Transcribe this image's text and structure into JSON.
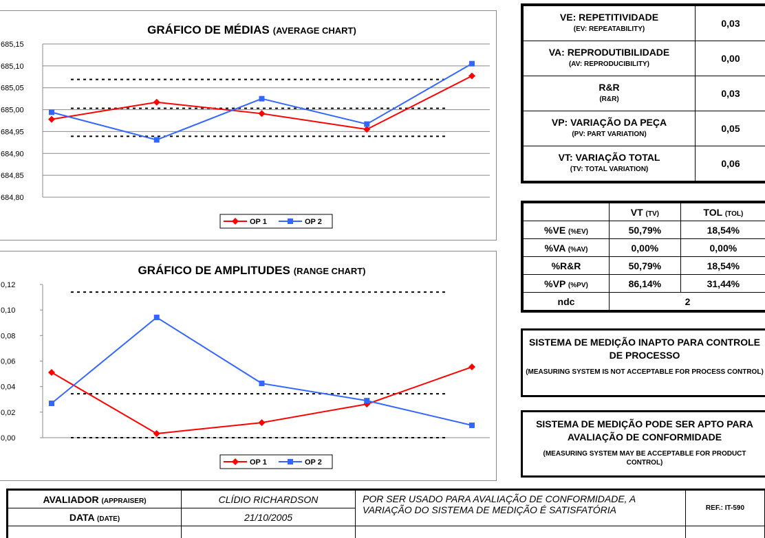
{
  "chart_data": [
    {
      "type": "line",
      "title": "GRÁFICO DE MÉDIAS",
      "subtitle": "(AVERAGE CHART)",
      "categories": [
        null,
        null,
        null,
        null,
        null
      ],
      "series": [
        {
          "name": "OP 1",
          "color": "#ff0000",
          "marker": "diamond",
          "values": [
            684.978,
            685.017,
            684.991,
            684.955,
            685.077
          ]
        },
        {
          "name": "OP 2",
          "color": "#3366ff",
          "marker": "square",
          "values": [
            684.994,
            684.931,
            685.025,
            684.967,
            685.105
          ]
        }
      ],
      "reference_lines": [
        685.069,
        685.003,
        684.939
      ],
      "ylim": [
        684.8,
        685.15
      ],
      "yticks": [
        {
          "value": 684.8,
          "label": "684,80"
        },
        {
          "value": 684.85,
          "label": "684,85"
        },
        {
          "value": 684.9,
          "label": "684,90"
        },
        {
          "value": 684.95,
          "label": "684,95"
        },
        {
          "value": 685,
          "label": "685,00"
        },
        {
          "value": 685.05,
          "label": "685,05"
        },
        {
          "value": 685.1,
          "label": "685,10"
        },
        {
          "value": 685.15,
          "label": "685,15"
        }
      ],
      "grid": true,
      "legend": "bottom"
    },
    {
      "type": "line",
      "title": "GRÁFICO DE AMPLITUDES",
      "subtitle": "(RANGE CHART)",
      "categories": [
        null,
        null,
        null,
        null,
        null
      ],
      "series": [
        {
          "name": "OP 1",
          "color": "#ff0000",
          "marker": "diamond",
          "values": [
            0.0511,
            0.0032,
            0.0118,
            0.0263,
            0.0554
          ]
        },
        {
          "name": "OP 2",
          "color": "#3366ff",
          "marker": "square",
          "values": [
            0.0269,
            0.0942,
            0.0425,
            0.029,
            0.0097
          ]
        }
      ],
      "reference_lines": [
        0.114,
        0.0344,
        0
      ],
      "ylim": [
        0,
        0.12
      ],
      "yticks": [
        {
          "value": 0,
          "label": "0,00"
        },
        {
          "value": 0.02,
          "label": "0,02"
        },
        {
          "value": 0.04,
          "label": "0,04"
        },
        {
          "value": 0.06,
          "label": "0,06"
        },
        {
          "value": 0.08,
          "label": "0,08"
        },
        {
          "value": 0.1,
          "label": "0,10"
        },
        {
          "value": 0.12,
          "label": "0,12"
        }
      ],
      "grid": false,
      "legend": "bottom"
    }
  ],
  "variation_table": {
    "rows": [
      {
        "label": "VE: REPETITIVIDADE",
        "sublabel": "(EV: REPEATABILITY)",
        "value": "0,03"
      },
      {
        "label": "VA: REPRODUTIBILIDADE",
        "sublabel": "(AV: REPRODUCIBILITY)",
        "value": "0,00"
      },
      {
        "label": "R&R",
        "sublabel": "(R&R)",
        "value": "0,03"
      },
      {
        "label": "VP: VARIAÇÃO DA PEÇA",
        "sublabel": "(PV: PART VARIATION)",
        "value": "0,05"
      },
      {
        "label": "VT: VARIAÇÃO TOTAL",
        "sublabel": "(TV: TOTAL VARIATION)",
        "value": "0,06"
      }
    ]
  },
  "percent_table": {
    "headers": [
      {
        "main": "VT",
        "sub": "(TV)"
      },
      {
        "main": "TOL",
        "sub": "(TOL)"
      }
    ],
    "rows": [
      {
        "main": "%VE",
        "sub": "(%EV)",
        "values": [
          "50,79%",
          "18,54%"
        ]
      },
      {
        "main": "%VA",
        "sub": "(%AV)",
        "values": [
          "0,00%",
          "0,00%"
        ]
      },
      {
        "main": "%R&R",
        "values": [
          "50,79%",
          "18,54%"
        ]
      },
      {
        "main": "%VP",
        "sub": "(%PV)",
        "values": [
          "86,14%",
          "31,44%"
        ]
      }
    ],
    "ndc": {
      "label": "ndc",
      "value": "2"
    }
  },
  "verdicts": [
    {
      "title": "SISTEMA DE MEDIÇÃO INAPTO PARA CONTROLE DE PROCESSO",
      "note": "(MEASURING SYSTEM IS NOT ACCEPTABLE FOR PROCESS CONTROL)"
    },
    {
      "title": "SISTEMA DE MEDIÇÃO PODE SER APTO PARA AVALIAÇÃO DE CONFORMIDADE",
      "note": "(MEASURING SYSTEM MAY BE ACCEPTABLE FOR PRODUCT CONTROL)"
    }
  ],
  "footer": {
    "rows": [
      {
        "label": "AVALIADOR",
        "sub": "(APPRAISER)",
        "value": "CLÍDIO RICHARDSON"
      },
      {
        "label": "DATA",
        "sub": "(DATE)",
        "value": "21/10/2005"
      }
    ],
    "note": "POR SER USADO PARA AVALIAÇÃO DE CONFORMIDADE, A VARIAÇÃO DO SISTEMA DE MEDIÇÃO É SATISFATÓRIA",
    "ref": "REF.: IT-590"
  }
}
